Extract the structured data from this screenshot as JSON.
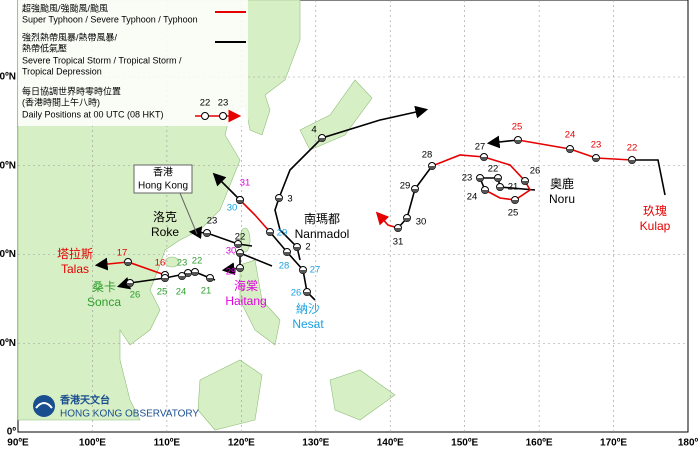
{
  "legend": {
    "typhoon_zh": "超強颱風/強颱風/颱風",
    "typhoon_en": "Super Typhoon / Severe Typhoon / Typhoon",
    "storm_zh": [
      "強烈熱帶風暴/熱帶風暴/",
      "熱帶低氣壓"
    ],
    "storm_en": [
      "Severe Tropical Storm / Tropical Storm /",
      "Tropical Depression"
    ],
    "positions_zh": [
      "每日協調世界時零時位置",
      "(香港時間上午八時)"
    ],
    "positions_en": "Daily Positions at 00 UTC (08 HKT)",
    "sample_days": [
      "22",
      "23"
    ]
  },
  "hong_kong": {
    "zh": "香港",
    "en": "Hong Kong"
  },
  "observatory": {
    "zh": "香港天文台",
    "en": "HONG KONG OBSERVATORY"
  },
  "axes": {
    "lon": [
      "90ºE",
      "100ºE",
      "110ºE",
      "120ºE",
      "130ºE",
      "140ºE",
      "150ºE",
      "160ºE",
      "170ºE",
      "180º"
    ],
    "lat": [
      "0º",
      "10ºN",
      "20ºN",
      "30ºN",
      "40ºN"
    ]
  },
  "storms": [
    {
      "name_zh": "塔拉斯",
      "name_en": "Talas",
      "color": "#e60000",
      "days": [
        "17",
        "16"
      ]
    },
    {
      "name_zh": "桑卡",
      "name_en": "Sonca",
      "color": "#2e9e2e",
      "days": [
        "21",
        "22",
        "23",
        "24",
        "25",
        "26"
      ]
    },
    {
      "name_zh": "洛克",
      "name_en": "Roke",
      "color": "#000000",
      "days": [
        "23",
        "22"
      ]
    },
    {
      "name_zh": "海棠",
      "name_en": "Haitang",
      "color": "#e000e0",
      "days": [
        "30",
        "29",
        "31"
      ]
    },
    {
      "name_zh": "納沙",
      "name_en": "Nesat",
      "color": "#1aa0e0",
      "days": [
        "26",
        "27",
        "28",
        "29",
        "30"
      ]
    },
    {
      "name_zh": "南瑪都",
      "name_en": "Nanmadol",
      "color": "#000000",
      "days": [
        "2",
        "3",
        "4"
      ]
    },
    {
      "name_zh": "奧鹿",
      "name_en": "Noru",
      "color": "#000000",
      "days": [
        "31",
        "30",
        "29",
        "28",
        "27",
        "26",
        "25",
        "24",
        "23",
        "22",
        "21"
      ]
    },
    {
      "name_zh": "玖瑰",
      "name_en": "Kulap",
      "color": "#e60000",
      "days": [
        "25",
        "24",
        "23",
        "22"
      ]
    }
  ]
}
